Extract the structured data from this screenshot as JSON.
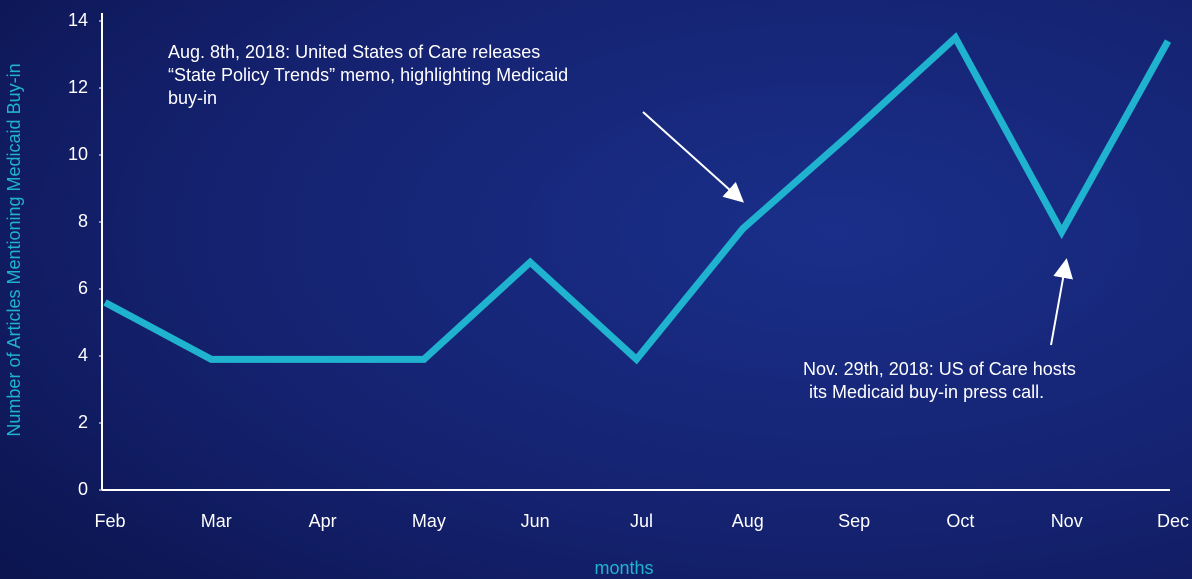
{
  "chart_data": {
    "type": "line",
    "categories": [
      "Feb",
      "Mar",
      "Apr",
      "May",
      "Jun",
      "Jul",
      "Aug",
      "Sep",
      "Oct",
      "Nov",
      "Dec"
    ],
    "series": [
      {
        "name": "Articles Mentioning Medicaid Buy-in",
        "color": "#1fb3d0",
        "values": [
          5.6,
          3.9,
          3.9,
          3.9,
          6.8,
          3.9,
          7.8,
          10.6,
          13.5,
          7.7,
          13.4
        ]
      }
    ],
    "ylim": [
      0,
      14
    ],
    "yticks": [
      0,
      2,
      4,
      6,
      8,
      10,
      12,
      14
    ],
    "x_label": "months",
    "y_label": "Number of Articles Mentioning Medicaid Buy-in",
    "annotations": [
      {
        "lines": [
          "Aug. 8th, 2018: United States of Care releases",
          "“State Policy Trends” memo, highlighting Medicaid",
          "buy-in"
        ]
      },
      {
        "lines": [
          "Nov. 29th, 2018: US of Care hosts",
          "its Medicaid buy-in press call."
        ]
      }
    ]
  }
}
